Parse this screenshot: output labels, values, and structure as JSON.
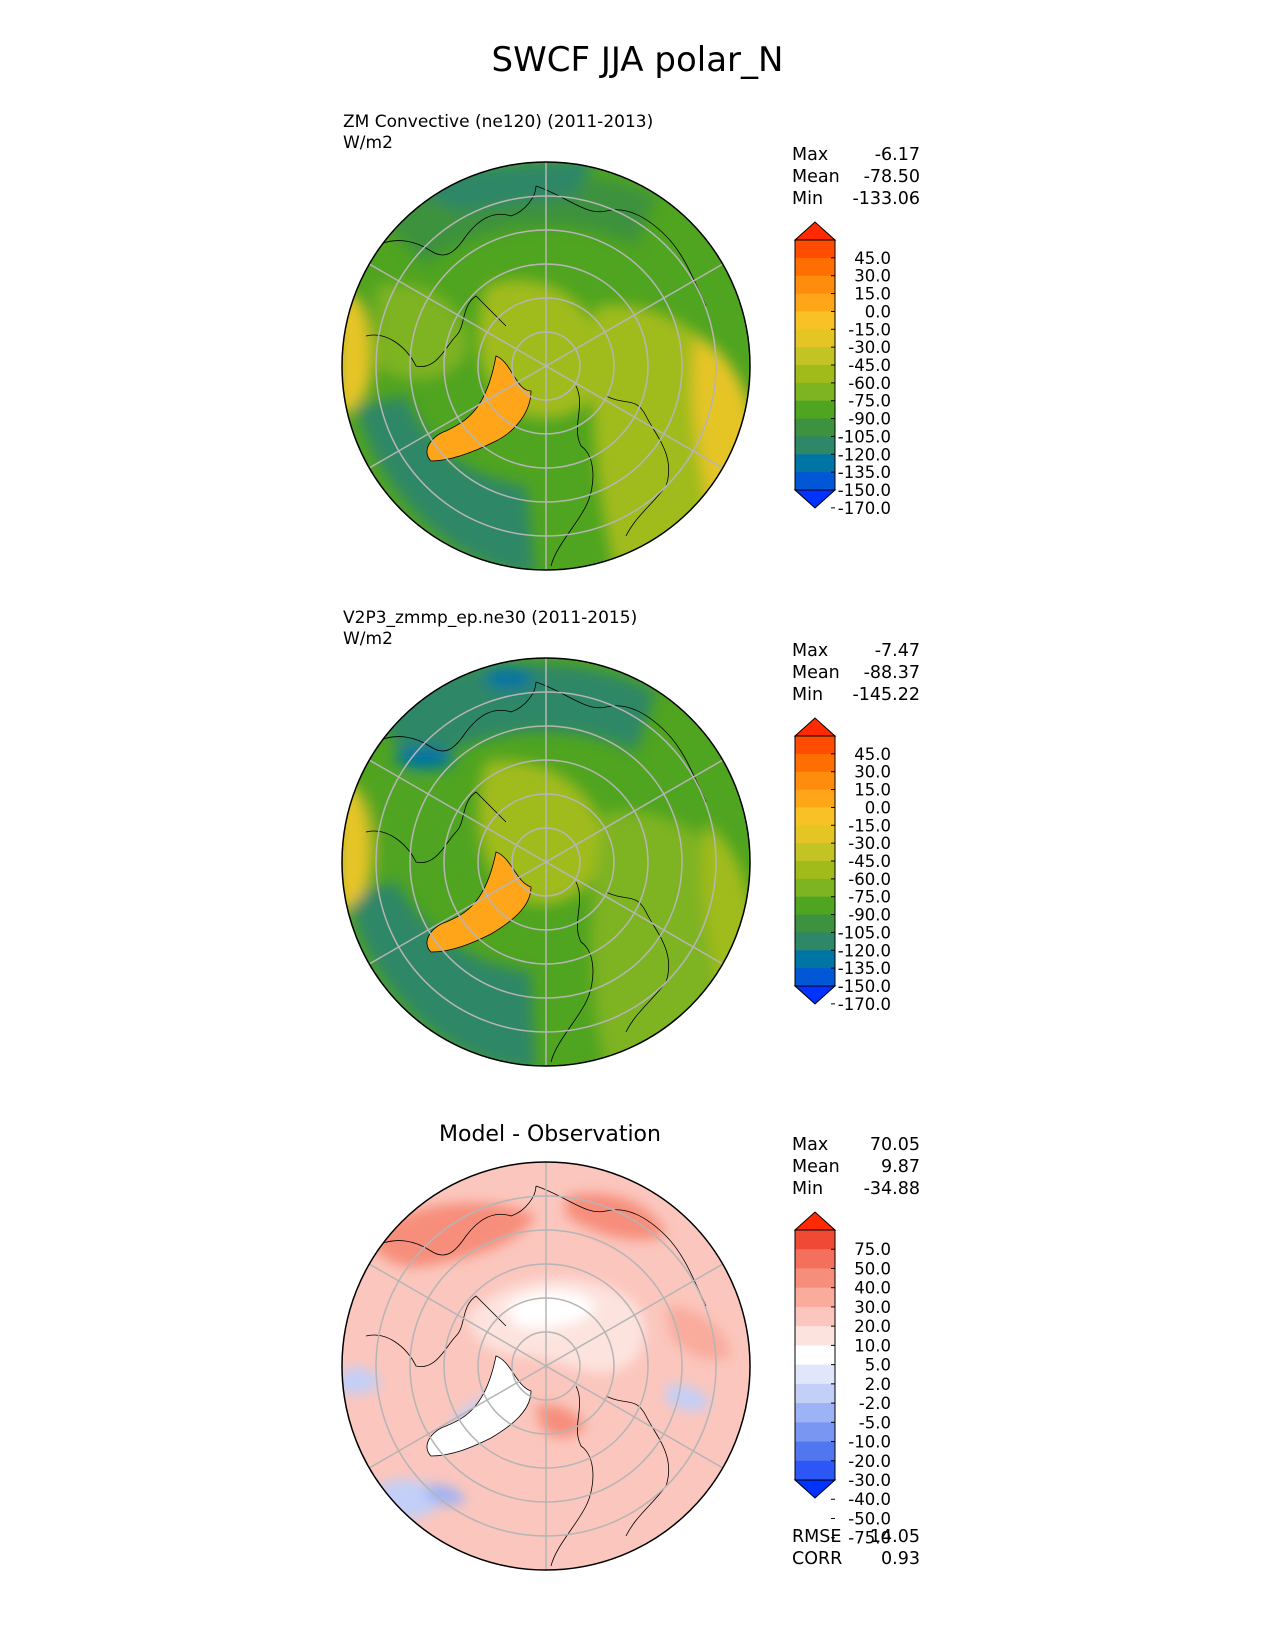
{
  "figure_title": "SWCF JJA polar_N",
  "colors": {
    "swcf": [
      "#0033ff",
      "#0057d6",
      "#0075a4",
      "#2e8766",
      "#3c923e",
      "#4fa420",
      "#7eb322",
      "#a0bb1a",
      "#c4c326",
      "#e5c426",
      "#f8c225",
      "#ffa51a",
      "#ff8c0c",
      "#ff6e00",
      "#ff4c00",
      "#ff2a00"
    ],
    "diff": [
      "#0033ff",
      "#2c56f5",
      "#5177f0",
      "#7896f2",
      "#9eb3f5",
      "#c3cff7",
      "#e1e7fa",
      "#ffffff",
      "#fde3de",
      "#fbc6bd",
      "#f9ab9c",
      "#f78e7c",
      "#f46f5c",
      "#f04a35",
      "#ff2a00"
    ]
  },
  "panels": [
    {
      "label": "ZM Convective (ne120) (2011-2013)",
      "units": "W/m2",
      "stats": {
        "max_label": "Max",
        "max": "-6.17",
        "mean_label": "Mean",
        "mean": "-78.50",
        "min_label": "Min",
        "min": "-133.06"
      },
      "colorbar_ticks": [
        "45.0",
        "30.0",
        "15.0",
        "0.0",
        "-15.0",
        "-30.0",
        "-45.0",
        "-60.0",
        "-75.0",
        "-90.0",
        "-105.0",
        "-120.0",
        "-135.0",
        "-150.0",
        "-170.0"
      ]
    },
    {
      "label": "V2P3_zmmp_ep.ne30 (2011-2015)",
      "units": "W/m2",
      "stats": {
        "max_label": "Max",
        "max": "-7.47",
        "mean_label": "Mean",
        "mean": "-88.37",
        "min_label": "Min",
        "min": "-145.22"
      },
      "colorbar_ticks": [
        "45.0",
        "30.0",
        "15.0",
        "0.0",
        "-15.0",
        "-30.0",
        "-45.0",
        "-60.0",
        "-75.0",
        "-90.0",
        "-105.0",
        "-120.0",
        "-135.0",
        "-150.0",
        "-170.0"
      ]
    },
    {
      "title": "Model - Observation",
      "stats": {
        "max_label": "Max",
        "max": "70.05",
        "mean_label": "Mean",
        "mean": "9.87",
        "min_label": "Min",
        "min": "-34.88",
        "rmse_label": "RMSE",
        "rmse": "14.05",
        "corr_label": "CORR",
        "corr": "0.93"
      },
      "colorbar_ticks": [
        "75.0",
        "50.0",
        "40.0",
        "30.0",
        "20.0",
        "10.0",
        "5.0",
        "2.0",
        "-2.0",
        "-5.0",
        "-10.0",
        "-20.0",
        "-30.0",
        "-40.0",
        "-50.0",
        "-75.0"
      ]
    }
  ],
  "chart_data": [
    {
      "type": "heatmap",
      "title": "ZM Convective (ne120) (2011-2013)",
      "projection": "north polar stereographic",
      "units": "W/m2",
      "max": -6.17,
      "mean": -78.5,
      "min": -133.06,
      "levels": [
        -170,
        -150,
        -135,
        -120,
        -105,
        -90,
        -75,
        -60,
        -45,
        -30,
        -15,
        0,
        15,
        30,
        45
      ]
    },
    {
      "type": "heatmap",
      "title": "V2P3_zmmp_ep.ne30 (2011-2015)",
      "projection": "north polar stereographic",
      "units": "W/m2",
      "max": -7.47,
      "mean": -88.37,
      "min": -145.22,
      "levels": [
        -170,
        -150,
        -135,
        -120,
        -105,
        -90,
        -75,
        -60,
        -45,
        -30,
        -15,
        0,
        15,
        30,
        45
      ]
    },
    {
      "type": "heatmap",
      "title": "Model - Observation",
      "projection": "north polar stereographic",
      "max": 70.05,
      "mean": 9.87,
      "min": -34.88,
      "rmse": 14.05,
      "corr": 0.93,
      "levels": [
        -75,
        -50,
        -40,
        -30,
        -20,
        -10,
        -5,
        -2,
        2,
        5,
        10,
        20,
        30,
        40,
        50,
        75
      ]
    }
  ]
}
